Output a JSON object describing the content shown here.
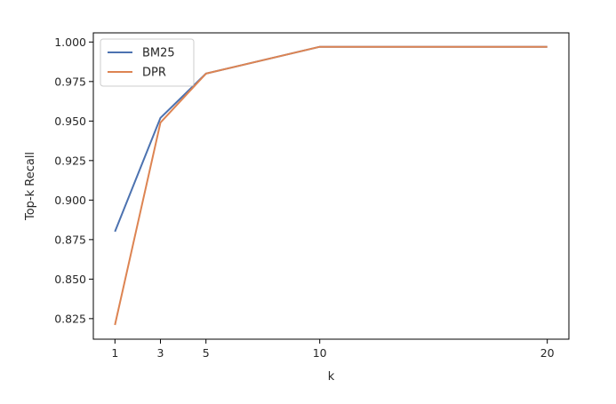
{
  "chart_data": {
    "type": "line",
    "x": [
      1,
      3,
      5,
      10,
      20
    ],
    "series": [
      {
        "name": "BM25",
        "values": [
          0.88,
          0.952,
          0.98,
          0.997,
          0.997
        ],
        "color": "#4c72b0"
      },
      {
        "name": "DPR",
        "values": [
          0.821,
          0.949,
          0.98,
          0.997,
          0.997
        ],
        "color": "#dd8452"
      }
    ],
    "xlabel": "k",
    "ylabel": "Top-k Recall",
    "xticks": [
      1,
      3,
      5,
      10,
      20
    ],
    "yticks": [
      0.825,
      0.85,
      0.875,
      0.9,
      0.925,
      0.95,
      0.975,
      1.0
    ],
    "ytick_labels": [
      "0.825",
      "0.850",
      "0.875",
      "0.900",
      "0.925",
      "0.950",
      "0.975",
      "1.000"
    ],
    "xlim": [
      0.05,
      20.95
    ],
    "ylim": [
      0.812,
      1.0058
    ],
    "grid": false,
    "legend_position": "top-left"
  }
}
